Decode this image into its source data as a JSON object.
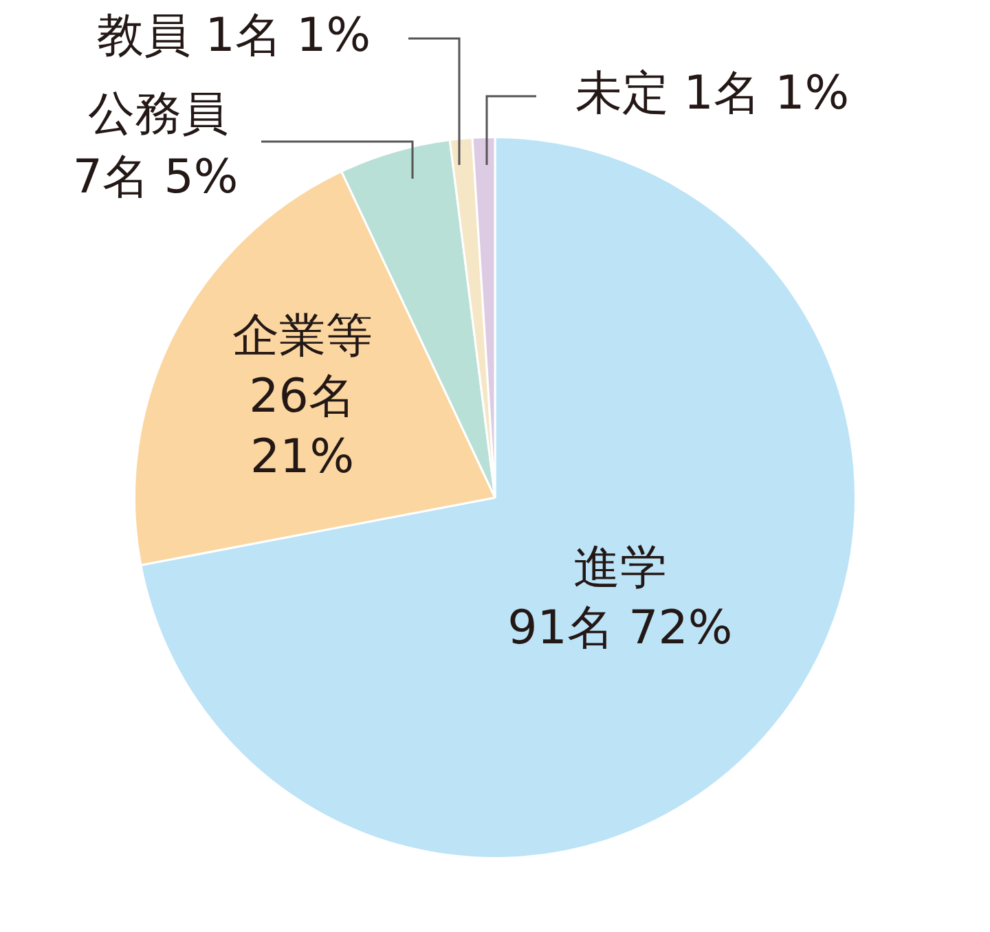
{
  "chart_data": {
    "type": "pie",
    "legend": false,
    "categories": [
      "進学",
      "企業等",
      "公務員",
      "教員",
      "未定"
    ],
    "values": [
      72,
      21,
      5,
      1,
      1
    ],
    "value_labels": [
      "91名 72%",
      "26名\n21%",
      "7名 5%",
      "1名 1%",
      "1名 1%"
    ],
    "colors": [
      "#bde3f7",
      "#fbd6a0",
      "#b9e0d6",
      "#f5e6c6",
      "#dccbe3"
    ]
  }
}
